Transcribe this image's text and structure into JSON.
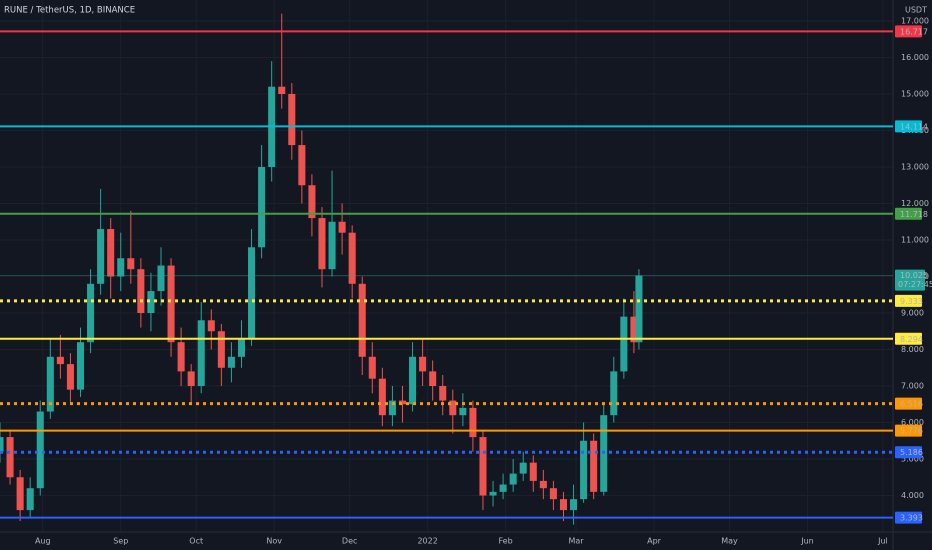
{
  "chart_data": {
    "type": "candlestick",
    "title": "RUNE / TetherUS, 1D, BINANCE",
    "currency": "USDT",
    "x": [
      0,
      4,
      8,
      12,
      16,
      20,
      24,
      28,
      32,
      36,
      40,
      44,
      48,
      52,
      56,
      60,
      64,
      68,
      72,
      76,
      80,
      84,
      88,
      92,
      96,
      100,
      104,
      108,
      112,
      116,
      120,
      124,
      128,
      132,
      136,
      140,
      144,
      148,
      152,
      156,
      160,
      164,
      168,
      172,
      176,
      180,
      184,
      188,
      192,
      196,
      200,
      204,
      208,
      212,
      216,
      220,
      224,
      228,
      232,
      236,
      240,
      244,
      248,
      252,
      254
    ],
    "open": [
      5.2,
      5.6,
      4.5,
      3.6,
      4.2,
      6.3,
      7.8,
      7.6,
      6.9,
      8.2,
      9.8,
      11.3,
      10.0,
      10.5,
      10.2,
      9.0,
      9.6,
      10.3,
      8.2,
      7.4,
      7.0,
      8.8,
      8.5,
      7.5,
      7.8,
      8.3,
      10.8,
      13.0,
      15.2,
      15.0,
      13.6,
      12.5,
      11.6,
      10.2,
      11.5,
      11.2,
      9.8,
      7.8,
      7.2,
      6.2,
      6.6,
      6.5,
      7.8,
      7.4,
      7.0,
      6.6,
      6.2,
      6.4,
      5.6,
      4.0,
      4.1,
      4.3,
      4.6,
      4.9,
      4.4,
      4.2,
      3.9,
      3.6,
      3.9,
      5.5,
      4.1,
      6.2,
      7.4,
      8.9,
      8.2
    ],
    "high": [
      6.0,
      5.8,
      4.7,
      4.5,
      6.6,
      8.3,
      8.4,
      7.9,
      8.6,
      10.2,
      12.4,
      11.6,
      11.2,
      11.8,
      10.5,
      10.1,
      10.8,
      10.5,
      8.6,
      7.6,
      9.3,
      9.1,
      8.7,
      8.2,
      8.8,
      11.3,
      13.6,
      15.9,
      17.2,
      15.3,
      14.0,
      12.8,
      11.9,
      12.9,
      12.0,
      11.4,
      10.0,
      8.2,
      7.5,
      7.0,
      7.0,
      8.2,
      8.3,
      7.7,
      7.3,
      6.9,
      6.8,
      6.6,
      5.8,
      4.4,
      4.6,
      5.0,
      5.2,
      5.1,
      4.7,
      4.4,
      4.1,
      4.3,
      6.0,
      5.7,
      6.5,
      7.8,
      9.4,
      9.6,
      10.2
    ],
    "low": [
      4.9,
      4.3,
      3.3,
      3.4,
      4.0,
      6.1,
      7.2,
      6.5,
      6.7,
      7.9,
      9.5,
      9.4,
      9.6,
      9.8,
      8.6,
      8.5,
      9.2,
      7.8,
      7.0,
      6.5,
      6.8,
      8.0,
      7.0,
      7.1,
      7.5,
      8.1,
      10.5,
      12.6,
      14.6,
      13.2,
      12.0,
      11.1,
      9.7,
      10.0,
      10.6,
      9.4,
      7.3,
      6.8,
      5.9,
      5.9,
      6.0,
      6.3,
      7.0,
      6.6,
      6.2,
      5.7,
      5.9,
      5.2,
      3.6,
      3.7,
      3.9,
      4.1,
      4.4,
      4.1,
      3.9,
      3.6,
      3.3,
      3.2,
      3.8,
      3.9,
      4.0,
      6.0,
      7.2,
      7.9,
      8.0
    ],
    "close": [
      5.6,
      4.5,
      3.6,
      4.2,
      6.3,
      7.8,
      7.6,
      6.9,
      8.2,
      9.8,
      11.3,
      10.0,
      10.5,
      10.2,
      9.0,
      9.6,
      10.3,
      8.2,
      7.4,
      7.0,
      8.8,
      8.5,
      7.5,
      7.8,
      8.3,
      10.8,
      13.0,
      15.2,
      15.0,
      13.6,
      12.5,
      11.6,
      10.2,
      11.5,
      11.2,
      9.8,
      7.8,
      7.2,
      6.2,
      6.6,
      6.5,
      7.8,
      7.4,
      7.0,
      6.6,
      6.2,
      6.4,
      5.6,
      4.0,
      4.1,
      4.3,
      4.6,
      4.9,
      4.4,
      4.2,
      3.9,
      3.6,
      3.9,
      5.5,
      4.1,
      6.2,
      7.4,
      8.9,
      8.2,
      10.025
    ],
    "up_color": "#26a69a",
    "down_color": "#ef5350",
    "xlim": [
      0,
      355
    ],
    "xticks": [
      {
        "value": 17,
        "label": "Aug"
      },
      {
        "value": 48,
        "label": "Sep"
      },
      {
        "value": 78,
        "label": "Oct"
      },
      {
        "value": 109,
        "label": "Nov"
      },
      {
        "value": 139,
        "label": "Dec"
      },
      {
        "value": 170,
        "label": "2022"
      },
      {
        "value": 201,
        "label": "Feb"
      },
      {
        "value": 229,
        "label": "Mar"
      },
      {
        "value": 260,
        "label": "Apr"
      },
      {
        "value": 290,
        "label": "May"
      },
      {
        "value": 321,
        "label": "Jun"
      },
      {
        "value": 351,
        "label": "Jul"
      }
    ],
    "ylim": [
      3.0,
      17.575
    ],
    "yticks": [
      {
        "value": 4,
        "label": "4.000"
      },
      {
        "value": 5,
        "label": "5.000"
      },
      {
        "value": 6,
        "label": "6.000"
      },
      {
        "value": 7,
        "label": "7.000"
      },
      {
        "value": 8,
        "label": "8.000"
      },
      {
        "value": 9,
        "label": "9.000"
      },
      {
        "value": 10,
        "label": "10.000"
      },
      {
        "value": 11,
        "label": "11.000"
      },
      {
        "value": 12,
        "label": "12.000"
      },
      {
        "value": 13,
        "label": "13.000"
      },
      {
        "value": 14,
        "label": "14.000"
      },
      {
        "value": 15,
        "label": "15.000"
      },
      {
        "value": 16,
        "label": "16.000"
      },
      {
        "value": 17,
        "label": "17.000"
      }
    ],
    "grid": true,
    "levels": [
      {
        "value": 16.717,
        "color": "#f23645",
        "style": "solid"
      },
      {
        "value": 14.114,
        "color": "#00bcd4",
        "style": "solid"
      },
      {
        "value": 11.718,
        "color": "#43a047",
        "style": "solid"
      },
      {
        "value": 9.333,
        "color": "#ffeb3b",
        "style": "dotted"
      },
      {
        "value": 8.294,
        "color": "#ffeb3b",
        "style": "solid"
      },
      {
        "value": 6.516,
        "color": "#ff9800",
        "style": "dotted"
      },
      {
        "value": 5.776,
        "color": "#ff9800",
        "style": "solid"
      },
      {
        "value": 5.186,
        "color": "#2962ff",
        "style": "dotted"
      },
      {
        "value": 3.393,
        "color": "#2962ff",
        "style": "solid"
      }
    ],
    "current_price": {
      "value": 10.025,
      "countdown": "07:27:45",
      "color": "#26a69a"
    }
  }
}
